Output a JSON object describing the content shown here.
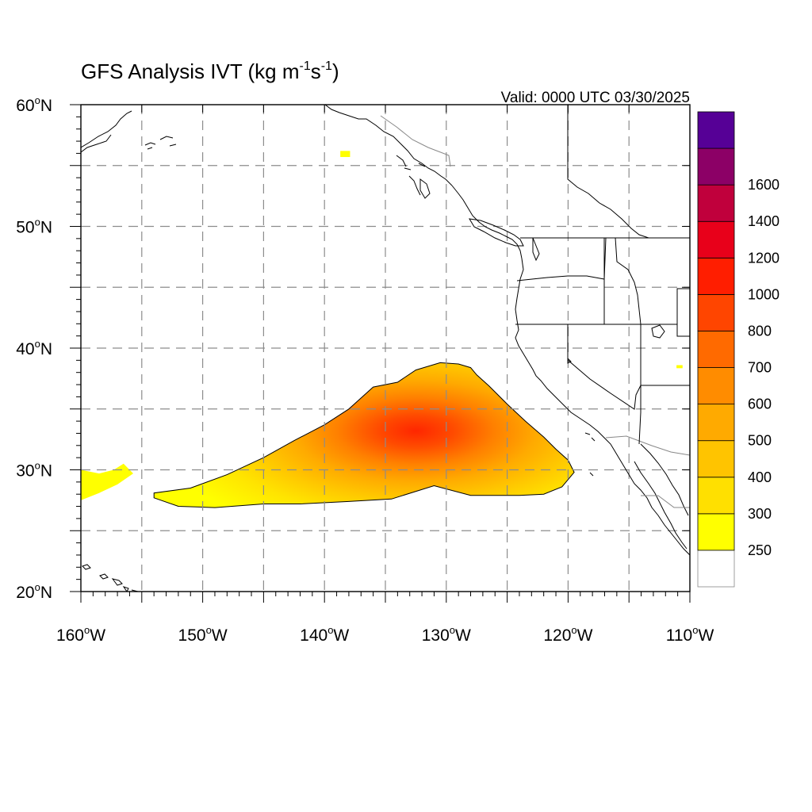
{
  "title": {
    "prefix": "GFS Analysis IVT (kg m",
    "exp1": "-1",
    "mid": "s",
    "exp2": "-1",
    "suffix": ")"
  },
  "valid_text": "Valid: 0000 UTC 03/30/2025",
  "map": {
    "lon_range": [
      -160,
      -110
    ],
    "lat_range": [
      20,
      60
    ],
    "grid_lons": [
      -155,
      -150,
      -145,
      -140,
      -135,
      -130,
      -125,
      -120,
      -115
    ],
    "grid_lats": [
      25,
      30,
      35,
      40,
      45,
      50,
      55
    ],
    "x_ticks": [
      {
        "lon": -160,
        "label": "160",
        "hemi": "W"
      },
      {
        "lon": -150,
        "label": "150",
        "hemi": "W"
      },
      {
        "lon": -140,
        "label": "140",
        "hemi": "W"
      },
      {
        "lon": -130,
        "label": "130",
        "hemi": "W"
      },
      {
        "lon": -120,
        "label": "120",
        "hemi": "W"
      },
      {
        "lon": -110,
        "label": "110",
        "hemi": "W"
      }
    ],
    "y_ticks": [
      {
        "lat": 60,
        "label": "60",
        "hemi": "N"
      },
      {
        "lat": 50,
        "label": "50",
        "hemi": "N"
      },
      {
        "lat": 40,
        "label": "40",
        "hemi": "N"
      },
      {
        "lat": 30,
        "label": "30",
        "hemi": "N"
      },
      {
        "lat": 20,
        "label": "20",
        "hemi": "N"
      }
    ],
    "degree_symbol": "o",
    "outline_color": "#000000",
    "grid_color": "#8c8c8c"
  },
  "ivt_field": {
    "main_plume_outline": [
      [
        -154.0,
        27.7
      ],
      [
        -152.0,
        27.0
      ],
      [
        -149.0,
        26.9
      ],
      [
        -145.0,
        27.2
      ],
      [
        -142.0,
        27.2
      ],
      [
        -138.0,
        27.4
      ],
      [
        -134.5,
        27.6
      ],
      [
        -131.0,
        28.7
      ],
      [
        -128.0,
        27.9
      ],
      [
        -124.0,
        27.9
      ],
      [
        -122.0,
        28.0
      ],
      [
        -120.5,
        28.6
      ],
      [
        -119.5,
        29.8
      ],
      [
        -120.0,
        30.8
      ],
      [
        -121.0,
        31.7
      ],
      [
        -122.0,
        32.7
      ],
      [
        -123.5,
        34.0
      ],
      [
        -125.0,
        35.4
      ],
      [
        -126.5,
        36.9
      ],
      [
        -127.5,
        37.8
      ],
      [
        -128.0,
        38.4
      ],
      [
        -129.0,
        38.7
      ],
      [
        -130.5,
        38.8
      ],
      [
        -132.5,
        38.2
      ],
      [
        -134.0,
        37.2
      ],
      [
        -136.0,
        36.8
      ],
      [
        -138.0,
        35.0
      ],
      [
        -140.0,
        33.7
      ],
      [
        -142.5,
        32.4
      ],
      [
        -145.0,
        31.0
      ],
      [
        -148.0,
        29.6
      ],
      [
        -151.0,
        28.5
      ],
      [
        -154.0,
        28.1
      ]
    ],
    "west_patch_outline": [
      [
        -160.0,
        30.0
      ],
      [
        -158.5,
        29.7
      ],
      [
        -157.3,
        30.0
      ],
      [
        -156.5,
        30.5
      ],
      [
        -155.7,
        29.7
      ],
      [
        -157.0,
        28.8
      ],
      [
        -158.5,
        28.1
      ],
      [
        -160.0,
        27.5
      ]
    ],
    "small_patches": [
      {
        "lon": -138.7,
        "lat": 56.2,
        "w": 0.8,
        "h": 0.5
      },
      {
        "lon": -111.1,
        "lat": 38.6,
        "w": 0.5,
        "h": 0.25
      }
    ],
    "core_center": [
      -132.5,
      33.2
    ]
  },
  "colorbar": {
    "colors": [
      "#ffffff",
      "#ffff00",
      "#ffe000",
      "#ffc400",
      "#ffaa00",
      "#ff8c00",
      "#ff6a00",
      "#ff4500",
      "#ff1e00",
      "#e8001a",
      "#c0003c",
      "#8c0066",
      "#560096"
    ],
    "labels": [
      "250",
      "300",
      "400",
      "500",
      "600",
      "700",
      "800",
      "1000",
      "1200",
      "1400",
      "1600"
    ]
  }
}
